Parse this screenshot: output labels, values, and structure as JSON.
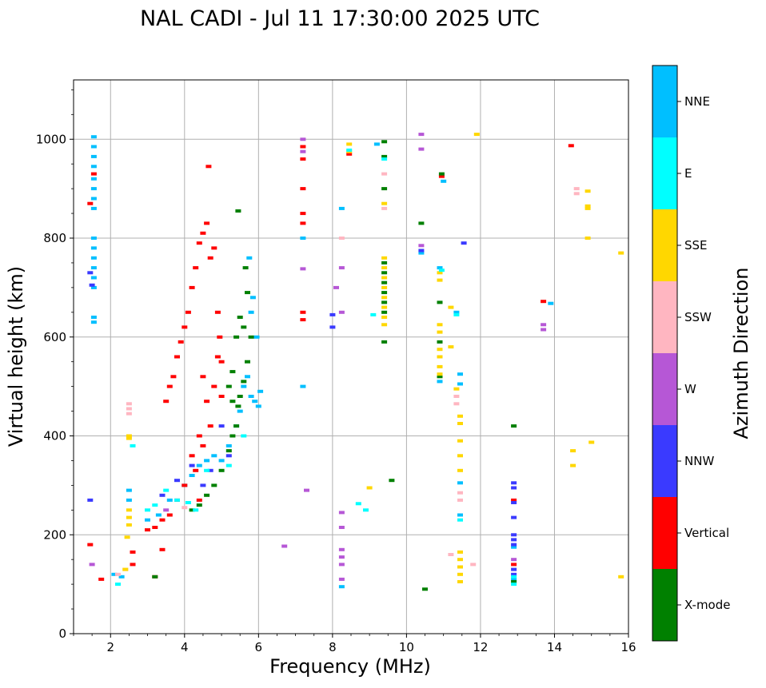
{
  "chart_data": {
    "type": "scatter",
    "title": "NAL CADI - Jul 11 17:30:00 2025 UTC",
    "xlabel": "Frequency (MHz)",
    "ylabel": "Virtual height (km)",
    "xlim": [
      1,
      16
    ],
    "ylim": [
      0,
      1120
    ],
    "xticks": [
      2,
      4,
      6,
      8,
      10,
      12,
      14,
      16
    ],
    "yticks": [
      0,
      200,
      400,
      600,
      800,
      1000
    ],
    "grid": true,
    "colorbar": {
      "label": "Azimuth Direction",
      "categories": [
        {
          "name": "X-mode",
          "color": "#008000"
        },
        {
          "name": "Vertical",
          "color": "#ff0000"
        },
        {
          "name": "NNW",
          "color": "#3a3aff"
        },
        {
          "name": "W",
          "color": "#b657d6"
        },
        {
          "name": "SSW",
          "color": "#ffb6c1"
        },
        {
          "name": "SSE",
          "color": "#ffd700"
        },
        {
          "name": "E",
          "color": "#00ffff"
        },
        {
          "name": "NNE",
          "color": "#00bfff"
        }
      ]
    },
    "series": [
      {
        "name": "NNE",
        "points": [
          [
            1.55,
            1005
          ],
          [
            1.55,
            985
          ],
          [
            1.55,
            965
          ],
          [
            1.55,
            945
          ],
          [
            1.55,
            920
          ],
          [
            1.55,
            900
          ],
          [
            1.55,
            880
          ],
          [
            1.55,
            860
          ],
          [
            1.55,
            800
          ],
          [
            1.55,
            780
          ],
          [
            1.55,
            760
          ],
          [
            1.55,
            740
          ],
          [
            1.55,
            720
          ],
          [
            1.55,
            700
          ],
          [
            1.55,
            640
          ],
          [
            1.55,
            630
          ],
          [
            2.1,
            120
          ],
          [
            2.3,
            115
          ],
          [
            2.5,
            290
          ],
          [
            2.5,
            270
          ],
          [
            3.0,
            230
          ],
          [
            3.3,
            240
          ],
          [
            3.6,
            270
          ],
          [
            4.0,
            300
          ],
          [
            4.2,
            320
          ],
          [
            4.4,
            340
          ],
          [
            4.6,
            350
          ],
          [
            4.8,
            360
          ],
          [
            5.0,
            350
          ],
          [
            5.2,
            380
          ],
          [
            5.4,
            420
          ],
          [
            5.5,
            450
          ],
          [
            5.6,
            500
          ],
          [
            5.7,
            520
          ],
          [
            5.8,
            480
          ],
          [
            5.9,
            470
          ],
          [
            6.0,
            460
          ],
          [
            6.05,
            490
          ],
          [
            5.75,
            760
          ],
          [
            5.85,
            680
          ],
          [
            5.8,
            650
          ],
          [
            5.95,
            600
          ],
          [
            7.2,
            800
          ],
          [
            7.2,
            500
          ],
          [
            8.25,
            860
          ],
          [
            8.25,
            95
          ],
          [
            9.2,
            990
          ],
          [
            10.4,
            770
          ],
          [
            10.9,
            510
          ],
          [
            10.9,
            740
          ],
          [
            11.35,
            650
          ],
          [
            11.45,
            525
          ],
          [
            11.45,
            505
          ],
          [
            11.45,
            305
          ],
          [
            11.45,
            240
          ],
          [
            12.9,
            110
          ],
          [
            12.9,
            175
          ],
          [
            13.9,
            668
          ],
          [
            11.0,
            915
          ]
        ]
      },
      {
        "name": "Vertical",
        "points": [
          [
            1.45,
            870
          ],
          [
            1.55,
            930
          ],
          [
            1.45,
            180
          ],
          [
            1.75,
            110
          ],
          [
            2.6,
            165
          ],
          [
            2.6,
            140
          ],
          [
            3.2,
            115
          ],
          [
            3.4,
            170
          ],
          [
            3.5,
            470
          ],
          [
            3.6,
            500
          ],
          [
            3.7,
            520
          ],
          [
            3.8,
            560
          ],
          [
            3.9,
            590
          ],
          [
            4.0,
            620
          ],
          [
            4.1,
            650
          ],
          [
            4.2,
            700
          ],
          [
            4.3,
            740
          ],
          [
            4.4,
            790
          ],
          [
            4.5,
            810
          ],
          [
            4.6,
            830
          ],
          [
            4.7,
            760
          ],
          [
            4.8,
            780
          ],
          [
            4.9,
            650
          ],
          [
            4.95,
            600
          ],
          [
            5.0,
            550
          ],
          [
            4.8,
            500
          ],
          [
            4.6,
            470
          ],
          [
            4.4,
            400
          ],
          [
            4.2,
            360
          ],
          [
            4.0,
            300
          ],
          [
            3.8,
            270
          ],
          [
            3.6,
            240
          ],
          [
            3.4,
            230
          ],
          [
            3.2,
            215
          ],
          [
            3.0,
            210
          ],
          [
            4.5,
            380
          ],
          [
            4.7,
            420
          ],
          [
            5.0,
            480
          ],
          [
            4.4,
            270
          ],
          [
            4.65,
            945
          ],
          [
            7.2,
            985
          ],
          [
            7.2,
            960
          ],
          [
            7.2,
            900
          ],
          [
            7.2,
            850
          ],
          [
            7.2,
            830
          ],
          [
            7.2,
            650
          ],
          [
            7.2,
            635
          ],
          [
            8.45,
            970
          ],
          [
            10.95,
            925
          ],
          [
            13.7,
            672
          ],
          [
            14.45,
            987
          ],
          [
            12.9,
            140
          ],
          [
            12.9,
            270
          ],
          [
            4.3,
            330
          ],
          [
            4.5,
            520
          ],
          [
            4.9,
            560
          ]
        ]
      },
      {
        "name": "X-mode",
        "points": [
          [
            3.2,
            115
          ],
          [
            4.2,
            250
          ],
          [
            4.4,
            260
          ],
          [
            4.6,
            280
          ],
          [
            4.8,
            300
          ],
          [
            5.0,
            330
          ],
          [
            5.2,
            370
          ],
          [
            5.3,
            400
          ],
          [
            5.4,
            420
          ],
          [
            5.45,
            460
          ],
          [
            5.5,
            480
          ],
          [
            5.6,
            510
          ],
          [
            5.7,
            550
          ],
          [
            5.8,
            600
          ],
          [
            5.6,
            620
          ],
          [
            5.5,
            640
          ],
          [
            5.4,
            600
          ],
          [
            5.3,
            530
          ],
          [
            5.2,
            500
          ],
          [
            5.3,
            470
          ],
          [
            5.45,
            855
          ],
          [
            5.65,
            740
          ],
          [
            5.7,
            690
          ],
          [
            9.4,
            995
          ],
          [
            9.4,
            965
          ],
          [
            9.4,
            900
          ],
          [
            9.4,
            750
          ],
          [
            9.4,
            730
          ],
          [
            9.4,
            710
          ],
          [
            9.4,
            690
          ],
          [
            9.4,
            670
          ],
          [
            9.4,
            650
          ],
          [
            9.4,
            590
          ],
          [
            9.6,
            310
          ],
          [
            10.4,
            830
          ],
          [
            10.5,
            90
          ],
          [
            10.9,
            670
          ],
          [
            10.9,
            590
          ],
          [
            10.9,
            520
          ],
          [
            10.95,
            930
          ],
          [
            12.9,
            105
          ],
          [
            12.9,
            420
          ]
        ]
      },
      {
        "name": "NNW",
        "points": [
          [
            1.45,
            730
          ],
          [
            1.5,
            705
          ],
          [
            1.45,
            270
          ],
          [
            3.4,
            280
          ],
          [
            3.8,
            310
          ],
          [
            4.2,
            340
          ],
          [
            4.5,
            300
          ],
          [
            4.7,
            330
          ],
          [
            5.0,
            420
          ],
          [
            5.2,
            360
          ],
          [
            8.0,
            645
          ],
          [
            8.0,
            620
          ],
          [
            10.4,
            775
          ],
          [
            11.55,
            790
          ],
          [
            12.9,
            305
          ],
          [
            12.9,
            295
          ],
          [
            12.9,
            265
          ],
          [
            12.9,
            235
          ],
          [
            12.9,
            200
          ],
          [
            12.9,
            190
          ],
          [
            12.9,
            180
          ],
          [
            12.9,
            130
          ],
          [
            12.9,
            120
          ]
        ]
      },
      {
        "name": "W",
        "points": [
          [
            1.5,
            140
          ],
          [
            7.2,
            1000
          ],
          [
            7.2,
            975
          ],
          [
            7.2,
            738
          ],
          [
            7.3,
            290
          ],
          [
            8.1,
            700
          ],
          [
            8.25,
            740
          ],
          [
            8.25,
            650
          ],
          [
            8.25,
            245
          ],
          [
            8.25,
            215
          ],
          [
            8.25,
            170
          ],
          [
            8.25,
            155
          ],
          [
            8.25,
            140
          ],
          [
            8.25,
            110
          ],
          [
            6.7,
            177
          ],
          [
            10.4,
            1010
          ],
          [
            10.4,
            980
          ],
          [
            10.4,
            785
          ],
          [
            13.7,
            625
          ],
          [
            13.7,
            615
          ],
          [
            12.9,
            150
          ],
          [
            3.5,
            250
          ]
        ]
      },
      {
        "name": "SSW",
        "points": [
          [
            2.5,
            465
          ],
          [
            2.5,
            455
          ],
          [
            2.5,
            445
          ],
          [
            2.2,
            120
          ],
          [
            2.4,
            130
          ],
          [
            4.0,
            255
          ],
          [
            8.25,
            800
          ],
          [
            9.4,
            930
          ],
          [
            9.4,
            860
          ],
          [
            11.2,
            160
          ],
          [
            11.8,
            140
          ],
          [
            14.6,
            900
          ],
          [
            14.6,
            890
          ],
          [
            11.35,
            480
          ],
          [
            11.35,
            465
          ],
          [
            11.45,
            285
          ],
          [
            11.45,
            270
          ]
        ]
      },
      {
        "name": "SSE",
        "points": [
          [
            2.5,
            400
          ],
          [
            2.5,
            395
          ],
          [
            2.5,
            250
          ],
          [
            2.5,
            235
          ],
          [
            2.5,
            220
          ],
          [
            2.45,
            195
          ],
          [
            2.4,
            130
          ],
          [
            8.45,
            990
          ],
          [
            8.45,
            975
          ],
          [
            9.0,
            295
          ],
          [
            9.4,
            870
          ],
          [
            9.4,
            760
          ],
          [
            9.4,
            740
          ],
          [
            9.4,
            720
          ],
          [
            9.4,
            700
          ],
          [
            9.4,
            680
          ],
          [
            9.4,
            660
          ],
          [
            9.4,
            640
          ],
          [
            9.4,
            625
          ],
          [
            10.9,
            730
          ],
          [
            10.9,
            715
          ],
          [
            10.9,
            625
          ],
          [
            10.9,
            610
          ],
          [
            10.9,
            575
          ],
          [
            10.9,
            560
          ],
          [
            10.9,
            540
          ],
          [
            10.9,
            525
          ],
          [
            11.2,
            660
          ],
          [
            11.2,
            580
          ],
          [
            11.35,
            495
          ],
          [
            11.45,
            440
          ],
          [
            11.45,
            425
          ],
          [
            11.45,
            390
          ],
          [
            11.45,
            360
          ],
          [
            11.45,
            330
          ],
          [
            11.45,
            165
          ],
          [
            11.45,
            150
          ],
          [
            11.45,
            135
          ],
          [
            11.45,
            120
          ],
          [
            11.45,
            105
          ],
          [
            11.9,
            1010
          ],
          [
            14.5,
            370
          ],
          [
            14.5,
            340
          ],
          [
            14.9,
            895
          ],
          [
            14.9,
            865
          ],
          [
            14.9,
            860
          ],
          [
            15.0,
            387
          ],
          [
            14.9,
            800
          ],
          [
            15.8,
            770
          ],
          [
            15.8,
            115
          ]
        ]
      },
      {
        "name": "E",
        "points": [
          [
            2.2,
            100
          ],
          [
            2.6,
            380
          ],
          [
            3.0,
            250
          ],
          [
            3.2,
            260
          ],
          [
            3.5,
            290
          ],
          [
            3.8,
            270
          ],
          [
            4.1,
            265
          ],
          [
            4.3,
            250
          ],
          [
            4.6,
            330
          ],
          [
            5.2,
            340
          ],
          [
            5.6,
            400
          ],
          [
            8.45,
            978
          ],
          [
            8.7,
            263
          ],
          [
            8.9,
            250
          ],
          [
            9.1,
            645
          ],
          [
            9.4,
            960
          ],
          [
            10.95,
            735
          ],
          [
            11.35,
            645
          ],
          [
            11.45,
            230
          ],
          [
            12.9,
            100
          ],
          [
            12.9,
            115
          ]
        ]
      }
    ]
  }
}
